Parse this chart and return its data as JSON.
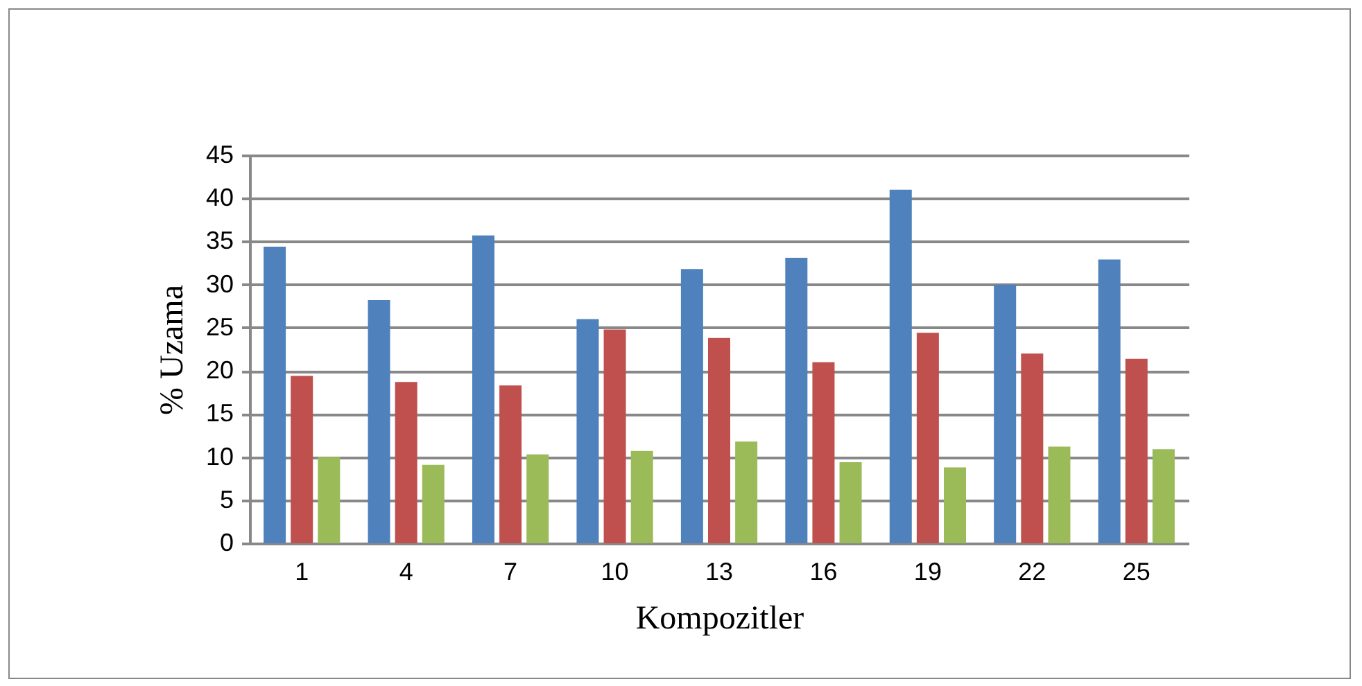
{
  "chart_data": {
    "type": "bar",
    "xlabel": "Kompozitler",
    "ylabel": "% Uzama",
    "categories": [
      "1",
      "4",
      "7",
      "10",
      "13",
      "16",
      "19",
      "22",
      "25"
    ],
    "series": [
      {
        "color": "#4f81bd",
        "values": [
          34.4,
          28.2,
          35.7,
          26.0,
          31.8,
          33.1,
          41.0,
          30.0,
          32.9
        ]
      },
      {
        "color": "#c0504d",
        "values": [
          19.4,
          18.7,
          18.3,
          24.8,
          23.8,
          21.0,
          24.4,
          22.0,
          21.4
        ]
      },
      {
        "color": "#9bbb59",
        "values": [
          10.0,
          9.1,
          10.3,
          10.7,
          11.8,
          9.4,
          8.8,
          11.2,
          10.9
        ]
      }
    ],
    "ylim": [
      0,
      45
    ],
    "yticks": [
      0,
      5,
      10,
      15,
      20,
      25,
      30,
      35,
      40,
      45
    ],
    "grid": "y",
    "legend": false
  }
}
